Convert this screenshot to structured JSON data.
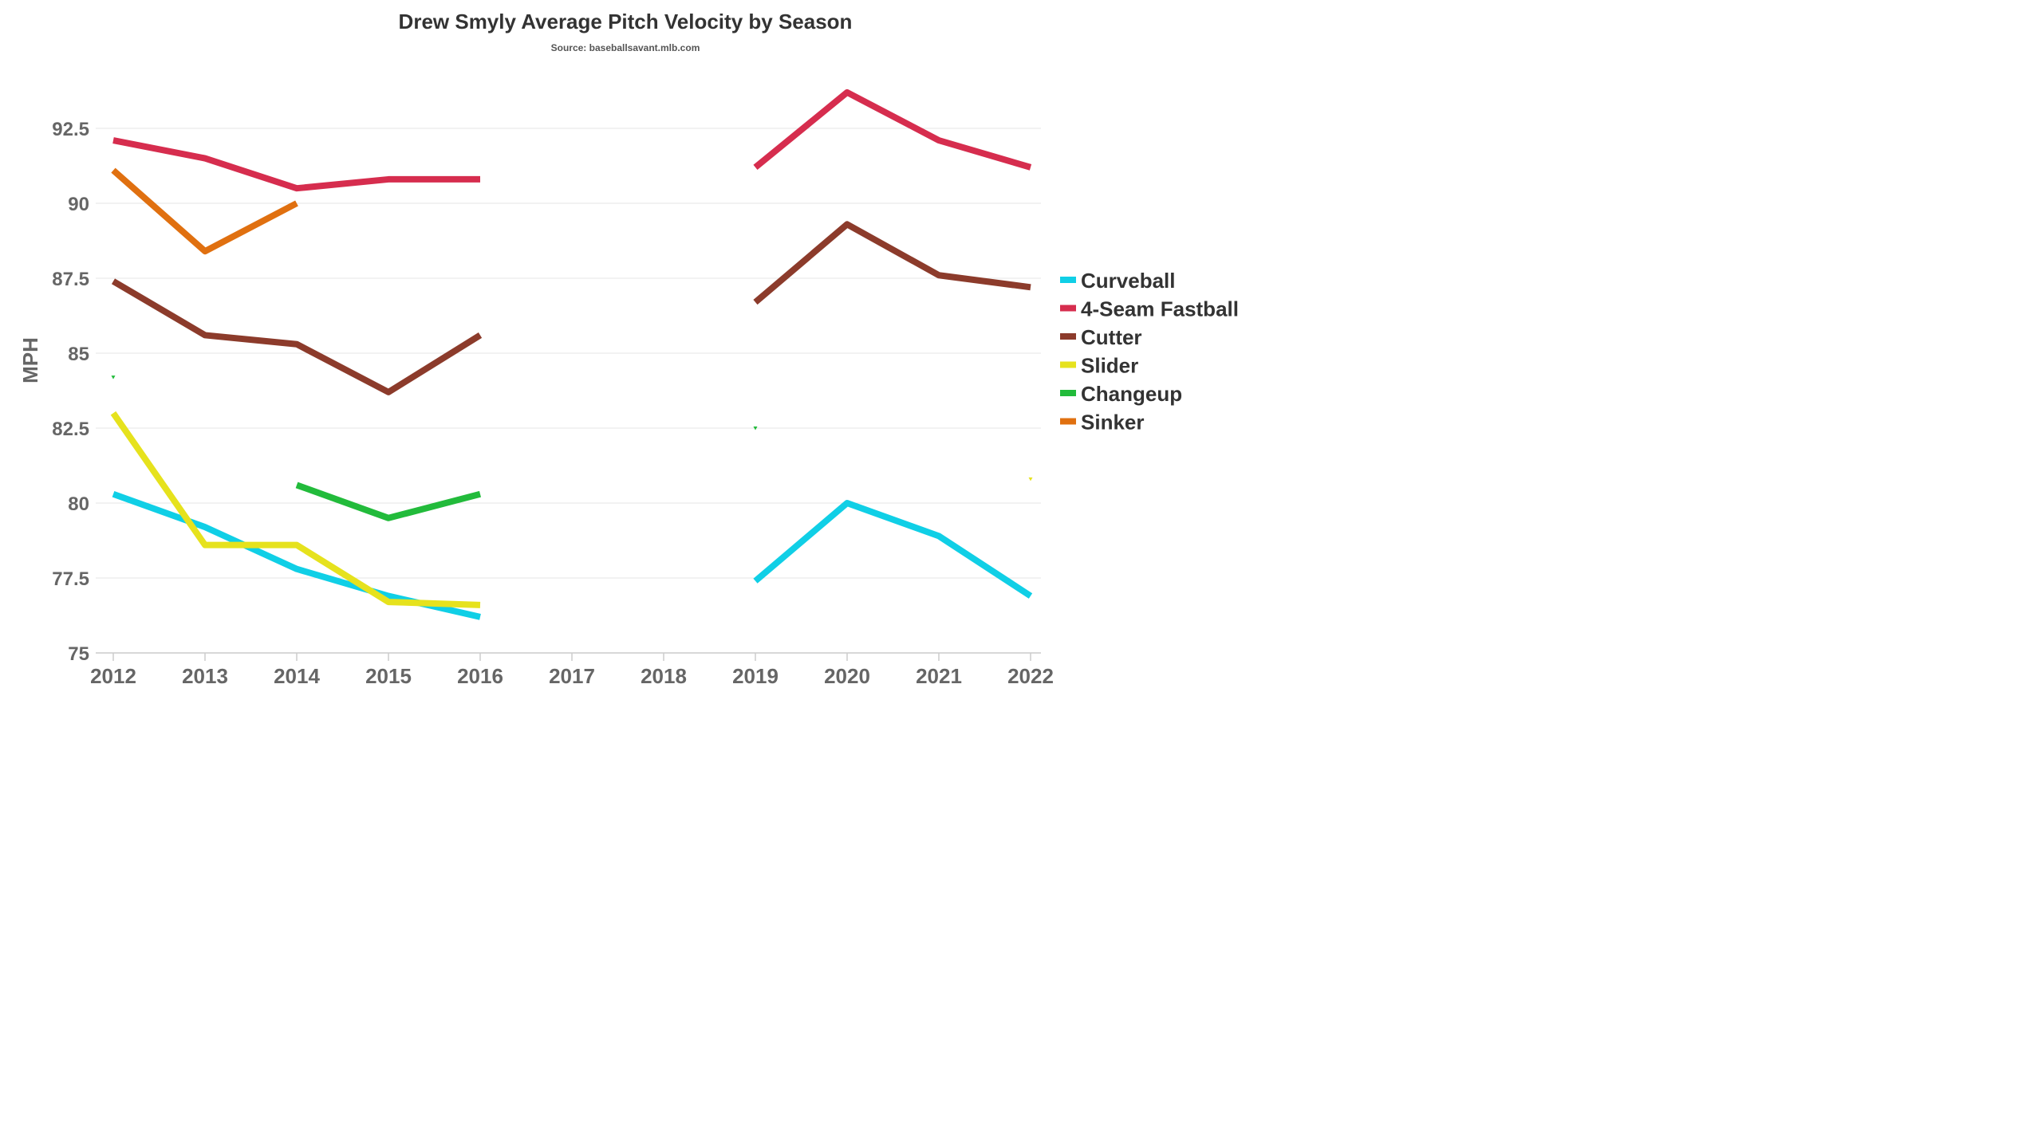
{
  "chart_data": {
    "type": "line",
    "title": "Drew Smyly Average Pitch Velocity by Season",
    "subtitle": "Source: baseballsavant.mlb.com",
    "ylabel": "MPH",
    "xlabel": "",
    "x": [
      "2012",
      "2013",
      "2014",
      "2015",
      "2016",
      "2017",
      "2018",
      "2019",
      "2020",
      "2021",
      "2022"
    ],
    "ylim": [
      75,
      94
    ],
    "yticks": [
      75,
      77.5,
      80,
      82.5,
      85,
      87.5,
      90,
      92.5
    ],
    "ytick_labels": [
      "75",
      "77.5",
      "80",
      "82.5",
      "85",
      "87.5",
      "90",
      "92.5"
    ],
    "grid": true,
    "legend_position": "right",
    "series": [
      {
        "name": "Curveball",
        "color": "#10cfe6",
        "values": [
          80.3,
          79.2,
          77.8,
          76.9,
          76.2,
          null,
          null,
          77.4,
          80.0,
          78.9,
          76.9
        ]
      },
      {
        "name": "4-Seam Fastball",
        "color": "#d62d4e",
        "values": [
          92.1,
          91.5,
          90.5,
          90.8,
          90.8,
          null,
          null,
          91.2,
          93.7,
          92.1,
          91.2
        ]
      },
      {
        "name": "Cutter",
        "color": "#8c3b2b",
        "values": [
          87.4,
          85.6,
          85.3,
          83.7,
          85.6,
          null,
          null,
          86.7,
          89.3,
          87.6,
          87.2
        ]
      },
      {
        "name": "Slider",
        "color": "#e6e21d",
        "values": [
          83.0,
          78.6,
          78.6,
          76.7,
          76.6,
          null,
          null,
          null,
          null,
          null,
          80.8
        ]
      },
      {
        "name": "Changeup",
        "color": "#22bb3b",
        "values": [
          84.2,
          null,
          80.6,
          79.5,
          80.3,
          null,
          null,
          82.5,
          null,
          null,
          null
        ]
      },
      {
        "name": "Sinker",
        "color": "#e07010",
        "values": [
          91.1,
          88.4,
          90.0,
          null,
          null,
          null,
          null,
          null,
          null,
          null,
          null
        ]
      }
    ]
  }
}
